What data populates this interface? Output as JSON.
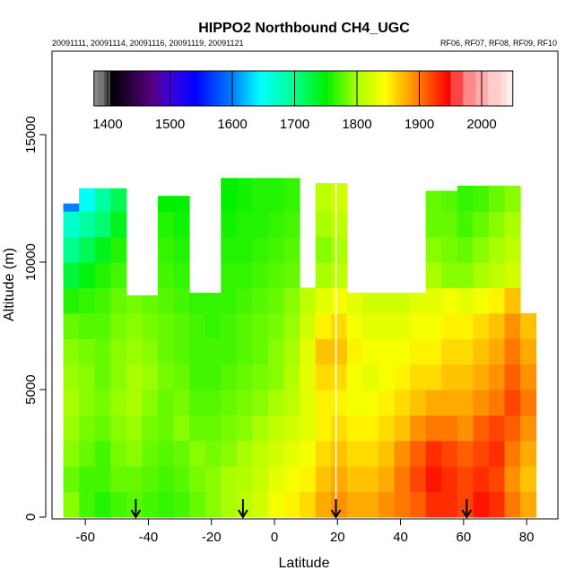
{
  "chart_data": {
    "type": "heatmap",
    "title": "HIPPO2 Northbound CH4_UGC",
    "subtitle_left": "20091111, 20091114, 20091116, 20091119, 20091121",
    "subtitle_right": "RF06, RF07, RF08, RF09, RF10",
    "xlabel": "Latitude",
    "ylabel": "Altitude (m)",
    "xlim": [
      -72,
      89
    ],
    "ylim": [
      0,
      18300
    ],
    "xticks": [
      -60,
      -40,
      -20,
      0,
      20,
      40,
      60,
      80
    ],
    "xtick_labels": [
      "-60",
      "-40",
      "-20",
      "0",
      "20",
      "40",
      "60",
      "80"
    ],
    "yticks": [
      0,
      5000,
      10000,
      15000
    ],
    "ytick_labels": [
      "0",
      "5000",
      "10000",
      "15000"
    ],
    "colorbar": {
      "range": [
        1378,
        2050
      ],
      "ticks": [
        1400,
        1500,
        1600,
        1700,
        1800,
        1900,
        2000
      ],
      "tick_labels": [
        "1400",
        "1500",
        "1600",
        "1700",
        "1800",
        "1900",
        "2000"
      ]
    },
    "lat_edges": [
      -67,
      -62,
      -57,
      -52,
      -47,
      -42,
      -37,
      -32,
      -27,
      -22,
      -17,
      -12,
      -7,
      -2,
      3,
      8,
      13,
      18,
      23,
      28,
      33,
      38,
      43,
      48,
      53,
      58,
      63,
      68,
      73,
      78,
      83
    ],
    "alt_bin_size": 1000,
    "column_tops": [
      12300,
      12900,
      12900,
      12900,
      8700,
      8700,
      12600,
      12600,
      8800,
      8800,
      13300,
      13300,
      13300,
      13300,
      13300,
      9000,
      13100,
      13100,
      8800,
      8800,
      8800,
      8800,
      8800,
      12800,
      12800,
      13000,
      13000,
      13000,
      13000,
      8000
    ],
    "values": [
      [
        1790,
        1770,
        1760,
        1770,
        1775,
        1770,
        1765,
        1770,
        1780,
        1790,
        1800,
        1810,
        1820,
        1840,
        1850,
        1860,
        1880,
        1890,
        1880,
        1880,
        1890,
        1900,
        1910,
        1930,
        1930,
        1920,
        1940,
        1930,
        1900,
        1880
      ],
      [
        1780,
        1770,
        1770,
        1780,
        1780,
        1775,
        1770,
        1775,
        1785,
        1790,
        1800,
        1805,
        1815,
        1830,
        1840,
        1850,
        1870,
        1880,
        1870,
        1870,
        1880,
        1900,
        1920,
        1940,
        1930,
        1920,
        1930,
        1920,
        1890,
        1870
      ],
      [
        1790,
        1780,
        1770,
        1785,
        1790,
        1780,
        1775,
        1780,
        1790,
        1785,
        1790,
        1800,
        1810,
        1820,
        1830,
        1840,
        1860,
        1870,
        1860,
        1860,
        1870,
        1890,
        1910,
        1930,
        1920,
        1910,
        1920,
        1930,
        1900,
        1880
      ],
      [
        1795,
        1785,
        1780,
        1790,
        1795,
        1785,
        1780,
        1790,
        1780,
        1780,
        1785,
        1790,
        1800,
        1810,
        1820,
        1830,
        1850,
        1860,
        1850,
        1850,
        1860,
        1870,
        1890,
        1900,
        1900,
        1890,
        1910,
        1920,
        1910,
        1890
      ],
      [
        1800,
        1790,
        1785,
        1795,
        1800,
        1790,
        1780,
        1785,
        1775,
        1775,
        1780,
        1785,
        1790,
        1800,
        1810,
        1830,
        1850,
        1850,
        1840,
        1840,
        1850,
        1860,
        1870,
        1880,
        1880,
        1880,
        1890,
        1900,
        1920,
        1900
      ],
      [
        1795,
        1790,
        1780,
        1790,
        1800,
        1795,
        1785,
        1780,
        1770,
        1770,
        1775,
        1780,
        1785,
        1790,
        1805,
        1830,
        1860,
        1860,
        1840,
        1830,
        1840,
        1850,
        1860,
        1860,
        1870,
        1870,
        1880,
        1890,
        1910,
        1890
      ],
      [
        1790,
        1785,
        1780,
        1790,
        1795,
        1790,
        1780,
        1775,
        1770,
        1770,
        1770,
        1775,
        1780,
        1790,
        1800,
        1830,
        1870,
        1870,
        1850,
        1840,
        1840,
        1840,
        1850,
        1850,
        1860,
        1860,
        1870,
        1880,
        1900,
        1880
      ],
      [
        1780,
        1775,
        1775,
        1785,
        1790,
        1785,
        1780,
        1775,
        1770,
        1765,
        1770,
        1775,
        1780,
        1785,
        1795,
        1820,
        1850,
        1860,
        1840,
        1830,
        1830,
        1830,
        1840,
        1840,
        1850,
        1850,
        1860,
        1870,
        1890,
        1870
      ],
      [
        1760,
        1765,
        1770,
        1780,
        1785,
        1780,
        1775,
        1770,
        1765,
        1765,
        1765,
        1770,
        1775,
        1780,
        1790,
        1810,
        1830,
        1840,
        1830,
        1820,
        1820,
        1820,
        1830,
        1830,
        1840,
        1830,
        1840,
        1850,
        1870,
        1860
      ],
      [
        1730,
        1745,
        1760,
        1770,
        null,
        null,
        1770,
        1765,
        null,
        null,
        1765,
        1765,
        1770,
        1775,
        1780,
        null,
        1800,
        1810,
        null,
        null,
        null,
        null,
        null,
        1800,
        1790,
        1790,
        1800,
        1810,
        1820,
        null
      ],
      [
        1700,
        1720,
        1740,
        1760,
        null,
        null,
        1765,
        1760,
        null,
        null,
        1760,
        1760,
        1765,
        1770,
        1775,
        null,
        1790,
        1800,
        null,
        null,
        null,
        null,
        null,
        1790,
        1785,
        1780,
        1790,
        1800,
        1810,
        null
      ],
      [
        1670,
        1690,
        1710,
        1740,
        null,
        null,
        1760,
        1755,
        null,
        null,
        1755,
        1760,
        1760,
        1765,
        1770,
        null,
        1800,
        1810,
        null,
        null,
        null,
        null,
        null,
        1780,
        1780,
        1770,
        1780,
        1790,
        1800,
        null
      ],
      [
        1600,
        1650,
        1690,
        1720,
        null,
        null,
        1750,
        1750,
        null,
        null,
        1750,
        1755,
        1760,
        1760,
        1765,
        null,
        1810,
        1820,
        null,
        null,
        null,
        null,
        null,
        1780,
        1775,
        1765,
        1770,
        1780,
        1790,
        null
      ],
      [
        null,
        null,
        null,
        null,
        null,
        null,
        null,
        null,
        null,
        null,
        1750,
        1755,
        1760,
        1760,
        1765,
        null,
        1810,
        1815,
        null,
        null,
        null,
        null,
        null,
        null,
        null,
        null,
        null,
        null,
        null,
        null
      ]
    ],
    "flight_boundary_line_lat": 19.5,
    "arrow_markers_lat": [
      -44,
      -10,
      19.5,
      61
    ],
    "grid": false
  },
  "colors": {
    "background": "#ffffff",
    "axis": "#000000",
    "separator": "#ffffff"
  }
}
